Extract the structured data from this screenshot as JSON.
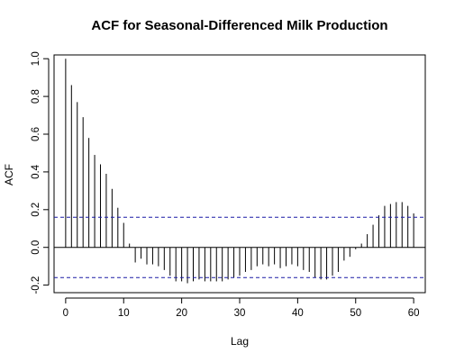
{
  "chart_data": {
    "type": "bar",
    "title": "ACF for Seasonal-Differenced Milk Production",
    "xlabel": "Lag",
    "ylabel": "ACF",
    "xlim": [
      -2,
      62
    ],
    "ylim": [
      -0.24,
      1.02
    ],
    "x_ticks": [
      0,
      10,
      20,
      30,
      40,
      50,
      60
    ],
    "y_ticks": [
      "-0.2",
      "0.0",
      "0.2",
      "0.4",
      "0.6",
      "0.8",
      "1.0"
    ],
    "confidence_bound": 0.16,
    "colors": {
      "bars": "#000000",
      "bounds": "#1a1aa6",
      "zero_line": "#000000"
    },
    "x": [
      0,
      1,
      2,
      3,
      4,
      5,
      6,
      7,
      8,
      9,
      10,
      11,
      12,
      13,
      14,
      15,
      16,
      17,
      18,
      19,
      20,
      21,
      22,
      23,
      24,
      25,
      26,
      27,
      28,
      29,
      30,
      31,
      32,
      33,
      34,
      35,
      36,
      37,
      38,
      39,
      40,
      41,
      42,
      43,
      44,
      45,
      46,
      47,
      48,
      49,
      50,
      51,
      52,
      53,
      54,
      55,
      56,
      57,
      58,
      59,
      60
    ],
    "values": [
      1.0,
      0.86,
      0.77,
      0.69,
      0.58,
      0.49,
      0.44,
      0.39,
      0.31,
      0.21,
      0.13,
      0.02,
      -0.08,
      -0.06,
      -0.09,
      -0.09,
      -0.1,
      -0.12,
      -0.15,
      -0.18,
      -0.18,
      -0.19,
      -0.18,
      -0.17,
      -0.18,
      -0.18,
      -0.18,
      -0.18,
      -0.17,
      -0.16,
      -0.15,
      -0.13,
      -0.12,
      -0.1,
      -0.09,
      -0.1,
      -0.09,
      -0.11,
      -0.1,
      -0.09,
      -0.1,
      -0.12,
      -0.13,
      -0.16,
      -0.17,
      -0.17,
      -0.15,
      -0.13,
      -0.07,
      -0.05,
      -0.01,
      0.02,
      0.07,
      0.12,
      0.17,
      0.22,
      0.23,
      0.24,
      0.24,
      0.22,
      0.18
    ]
  }
}
